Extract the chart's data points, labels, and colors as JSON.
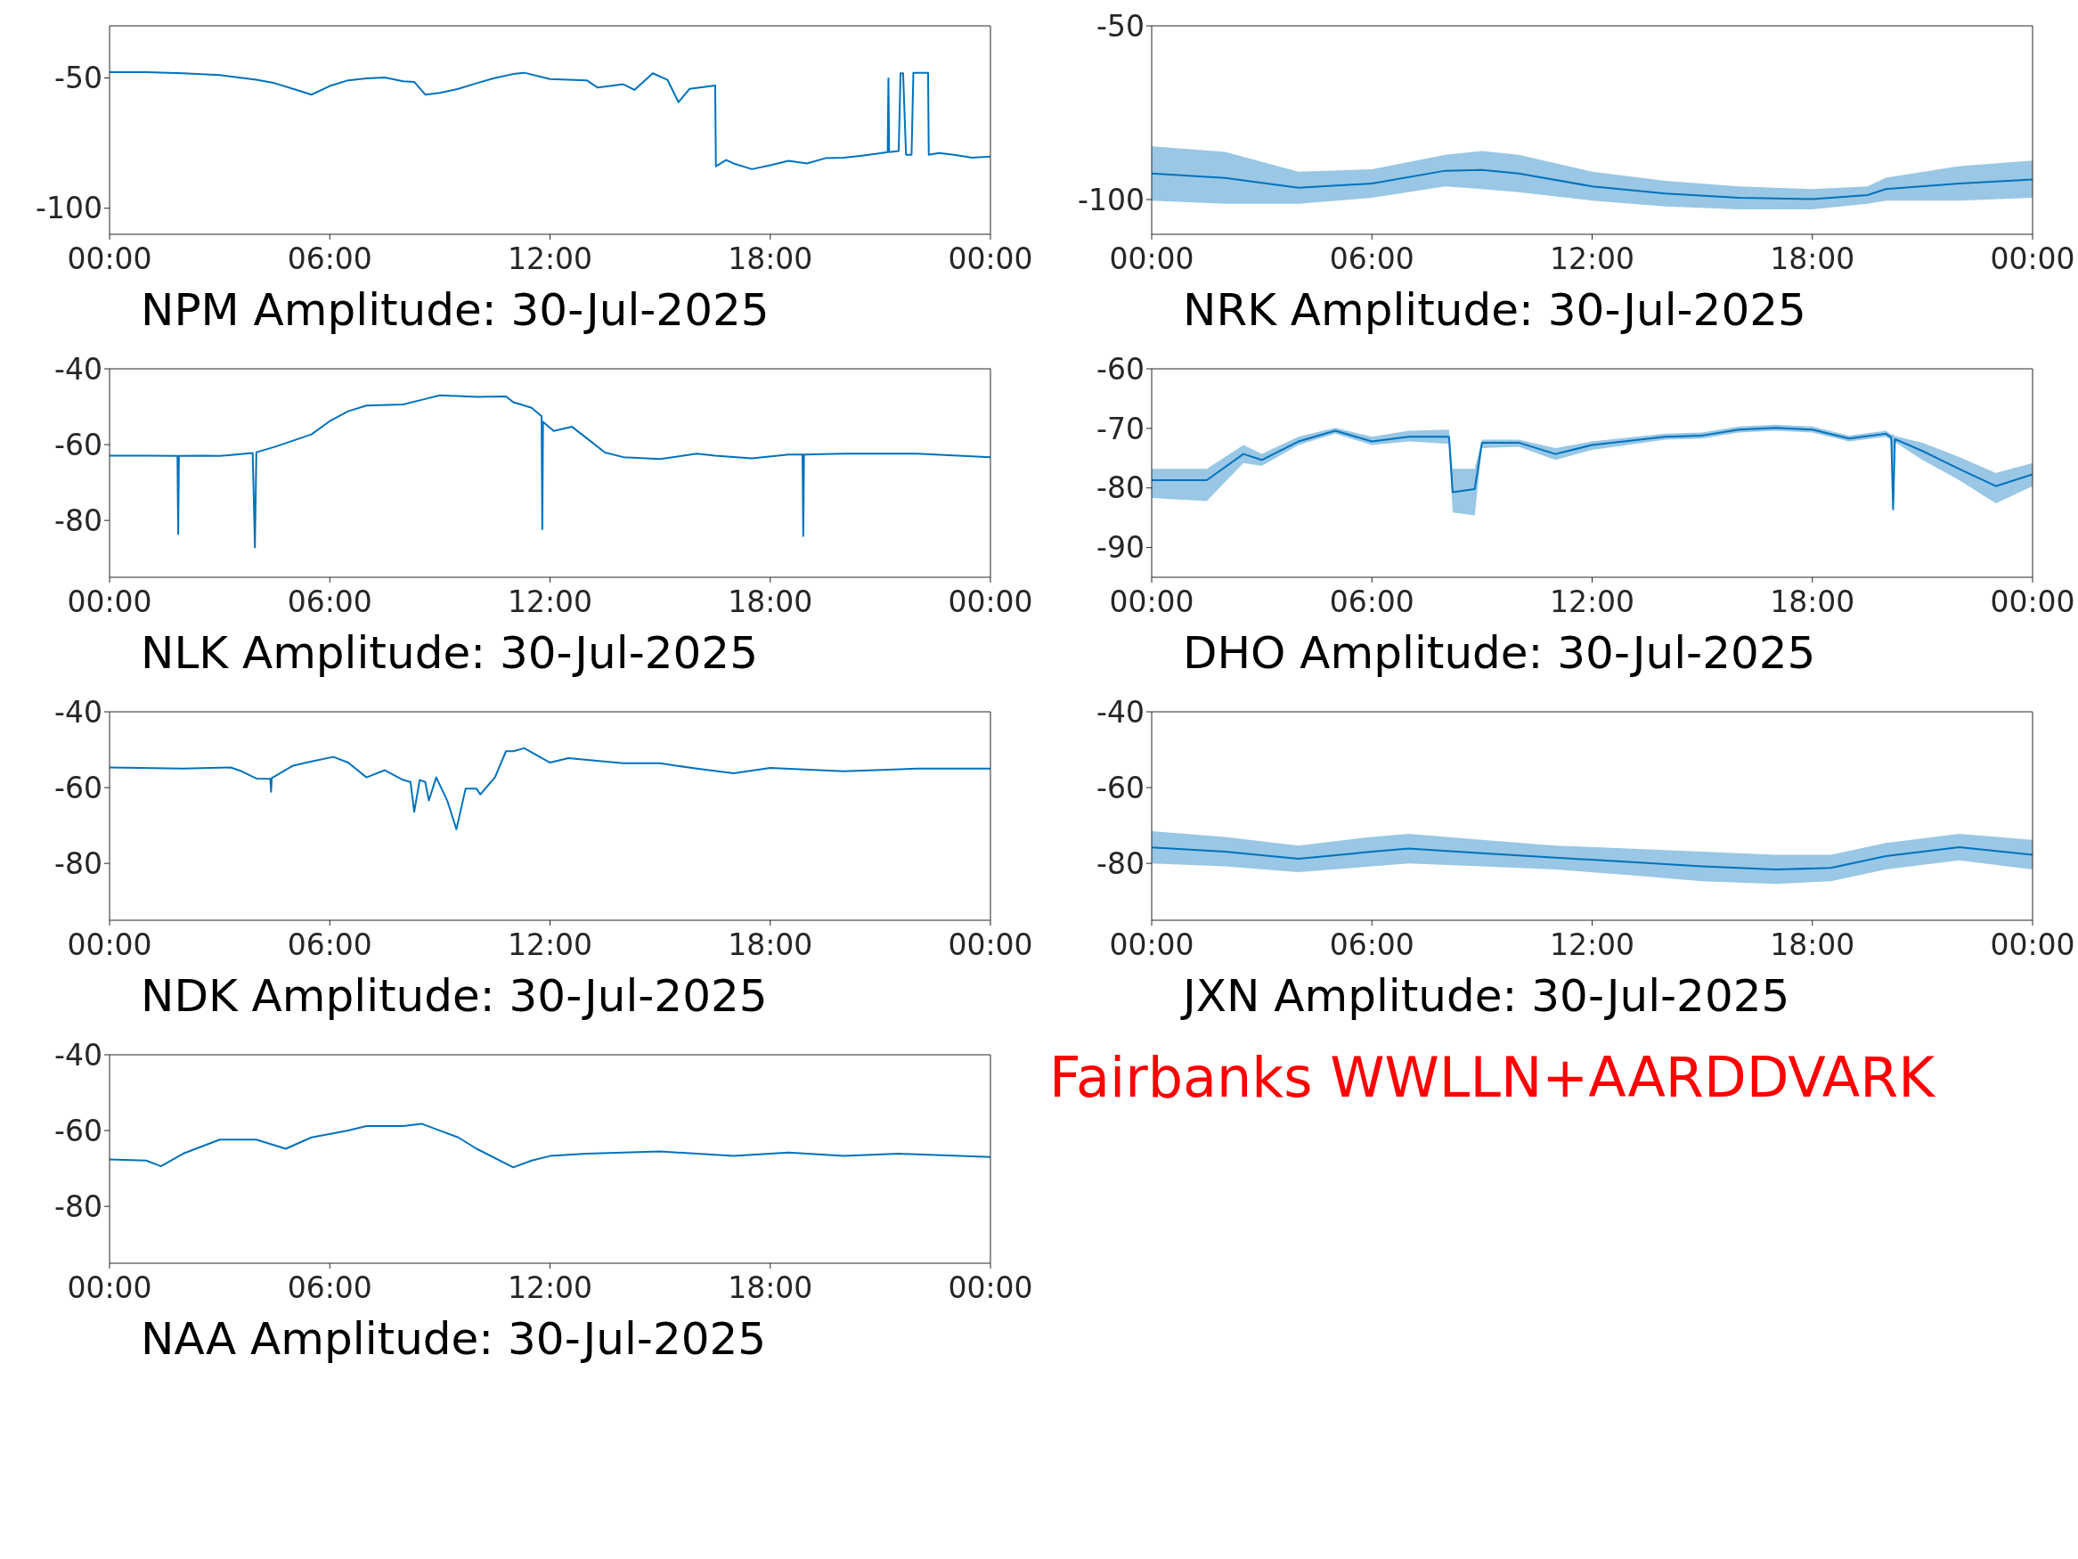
{
  "chart_data": [
    {
      "type": "line",
      "title": "NPM Amplitude: 30-Jul-2025",
      "xlim": [
        0,
        24
      ],
      "xticks": [
        {
          "value": 0,
          "label": "00:00"
        },
        {
          "value": 6,
          "label": "06:00"
        },
        {
          "value": 12,
          "label": "12:00"
        },
        {
          "value": 18,
          "label": "18:00"
        },
        {
          "value": 24,
          "label": "00:00"
        }
      ],
      "ylim": [
        -110,
        -30
      ],
      "yticks": [
        -100,
        -50
      ],
      "x": [
        0,
        1,
        2,
        3,
        4,
        4.5,
        5,
        5.5,
        6,
        6.5,
        7,
        7.5,
        8,
        8.3,
        8.6,
        9,
        9.5,
        10,
        10.5,
        11,
        11.3,
        12,
        13,
        13.3,
        14,
        14.3,
        14.8,
        15.2,
        15.5,
        15.8,
        16.5,
        16.52,
        16.8,
        17,
        17.5,
        18,
        18.5,
        19,
        19.5,
        20,
        20.5,
        21,
        21.2,
        21.22,
        21.24,
        21.5,
        21.55,
        21.62,
        21.7,
        21.85,
        21.9,
        22.3,
        22.32,
        22.6,
        23,
        23.5,
        24
      ],
      "series": [
        {
          "color": "#0072bd",
          "values": [
            -47.8,
            -47.8,
            -48.2,
            -48.9,
            -50.7,
            -52,
            -54.2,
            -56.4,
            -53.1,
            -50.9,
            -50.2,
            -49.8,
            -51.3,
            -51.5,
            -56.4,
            -55.7,
            -54.2,
            -52,
            -50,
            -48.5,
            -48,
            -50.4,
            -50.9,
            -53.7,
            -52.4,
            -54.6,
            -48.2,
            -50.7,
            -59.3,
            -54.2,
            -52.9,
            -83.9,
            -81.5,
            -82.8,
            -85,
            -83.5,
            -81.8,
            -82.8,
            -80.8,
            -80.6,
            -79.8,
            -78.9,
            -78.5,
            -50.2,
            -78.5,
            -78,
            -48.2,
            -48.2,
            -79.5,
            -79.5,
            -48,
            -48,
            -79.5,
            -78.8,
            -79.5,
            -80.6,
            -80.2
          ]
        }
      ]
    },
    {
      "type": "line",
      "title": "NRK Amplitude: 30-Jul-2025",
      "xlim": [
        0,
        24
      ],
      "xticks": [
        {
          "value": 0,
          "label": "00:00"
        },
        {
          "value": 6,
          "label": "06:00"
        },
        {
          "value": 12,
          "label": "12:00"
        },
        {
          "value": 18,
          "label": "18:00"
        },
        {
          "value": 24,
          "label": "00:00"
        }
      ],
      "ylim": [
        -110,
        -50
      ],
      "yticks": [
        -100,
        -50
      ],
      "x": [
        0,
        2,
        4,
        6,
        8,
        9,
        10,
        12,
        14,
        16,
        18,
        19.5,
        20,
        22,
        24
      ],
      "series": [
        {
          "color": "#0072bd",
          "values": [
            -92.5,
            -93.8,
            -96.6,
            -95.4,
            -91.7,
            -91.5,
            -92.5,
            -96.2,
            -98.3,
            -99.5,
            -99.9,
            -98.7,
            -97,
            -95.4,
            -94.2
          ],
          "lower": [
            -100.3,
            -101.2,
            -101.2,
            -99.5,
            -96.2,
            -97,
            -97.9,
            -100.3,
            -102,
            -102.8,
            -102.8,
            -101.2,
            -100.3,
            -100.3,
            -99.5
          ],
          "upper": [
            -84.7,
            -86.3,
            -92,
            -91.3,
            -87.1,
            -86,
            -87.1,
            -92,
            -94.6,
            -96.2,
            -97,
            -96.2,
            -93.7,
            -90.4,
            -88.8
          ]
        }
      ]
    },
    {
      "type": "line",
      "title": "NLK Amplitude: 30-Jul-2025",
      "xlim": [
        0,
        24
      ],
      "xticks": [
        {
          "value": 0,
          "label": "00:00"
        },
        {
          "value": 6,
          "label": "06:00"
        },
        {
          "value": 12,
          "label": "12:00"
        },
        {
          "value": 18,
          "label": "18:00"
        },
        {
          "value": 24,
          "label": "00:00"
        }
      ],
      "ylim": [
        -95,
        -40
      ],
      "yticks": [
        -80,
        -60,
        -40
      ],
      "x": [
        0,
        1,
        1.85,
        1.87,
        1.89,
        2.5,
        3,
        3.9,
        3.96,
        4.0,
        4.5,
        5.5,
        6,
        6.5,
        7,
        8,
        8.5,
        9,
        10,
        10.8,
        11,
        11.5,
        11.77,
        11.79,
        11.81,
        12.1,
        12.6,
        13,
        13.5,
        14,
        15,
        16,
        16.5,
        17.5,
        18.5,
        18.88,
        18.9,
        18.92,
        20,
        22,
        24
      ],
      "series": [
        {
          "color": "#0072bd",
          "values": [
            -62.9,
            -62.9,
            -63,
            -83.6,
            -63,
            -62.9,
            -63,
            -62.2,
            -87.1,
            -62,
            -60.6,
            -57.3,
            -53.8,
            -51.2,
            -49.7,
            -49.4,
            -48.2,
            -47,
            -47.4,
            -47.3,
            -48.8,
            -50.3,
            -52.5,
            -82.3,
            -54,
            -56.4,
            -55.3,
            -58.3,
            -62.1,
            -63.3,
            -63.8,
            -62.4,
            -62.9,
            -63.6,
            -62.6,
            -62.6,
            -84.1,
            -62.6,
            -62.4,
            -62.4,
            -63.3
          ]
        }
      ]
    },
    {
      "type": "line",
      "title": "DHO Amplitude: 30-Jul-2025",
      "xlim": [
        0,
        24
      ],
      "xticks": [
        {
          "value": 0,
          "label": "00:00"
        },
        {
          "value": 6,
          "label": "06:00"
        },
        {
          "value": 12,
          "label": "12:00"
        },
        {
          "value": 18,
          "label": "18:00"
        },
        {
          "value": 24,
          "label": "00:00"
        }
      ],
      "ylim": [
        -95,
        -60
      ],
      "yticks": [
        -90,
        -80,
        -70,
        -60
      ],
      "x": [
        0,
        1.5,
        2.5,
        3,
        4,
        5,
        6,
        7,
        8.1,
        8.2,
        8.8,
        9,
        10,
        11,
        12,
        14,
        15,
        16,
        17,
        18,
        19,
        20,
        20.15,
        20.2,
        20.25,
        21,
        22,
        23,
        24
      ],
      "series": [
        {
          "color": "#0072bd",
          "values": [
            -78.7,
            -78.7,
            -74.3,
            -75.3,
            -72.2,
            -70.4,
            -72.2,
            -71.4,
            -71.4,
            -80.7,
            -80.2,
            -72.4,
            -72.4,
            -74.3,
            -72.8,
            -71.4,
            -71.2,
            -70.2,
            -69.9,
            -70.2,
            -71.7,
            -70.9,
            -71.5,
            -83.6,
            -71.8,
            -73.8,
            -76.8,
            -79.7,
            -77.7
          ],
          "lower": [
            -81.7,
            -82.2,
            -75.8,
            -76.3,
            -72.8,
            -70.9,
            -72.8,
            -72.2,
            -72.6,
            -84.1,
            -84.6,
            -73.3,
            -73.1,
            -75.3,
            -73.6,
            -71.9,
            -71.7,
            -70.7,
            -70.4,
            -70.7,
            -72.2,
            -71.4,
            -72,
            -83.6,
            -72.3,
            -75.3,
            -78.7,
            -82.6,
            -79.7
          ],
          "upper": [
            -76.8,
            -76.8,
            -72.8,
            -74.3,
            -71.4,
            -69.9,
            -71.4,
            -70.4,
            -70.2,
            -76.8,
            -76.8,
            -71.9,
            -71.9,
            -73.3,
            -72.2,
            -70.9,
            -70.7,
            -69.7,
            -69.4,
            -69.7,
            -71.2,
            -70.4,
            -71,
            -71,
            -71.3,
            -72.4,
            -74.8,
            -77.5,
            -75.8
          ]
        }
      ]
    },
    {
      "type": "line",
      "title": "NDK Amplitude: 30-Jul-2025",
      "xlim": [
        0,
        24
      ],
      "xticks": [
        {
          "value": 0,
          "label": "00:00"
        },
        {
          "value": 6,
          "label": "06:00"
        },
        {
          "value": 12,
          "label": "12:00"
        },
        {
          "value": 18,
          "label": "18:00"
        },
        {
          "value": 24,
          "label": "00:00"
        }
      ],
      "ylim": [
        -95,
        -40
      ],
      "yticks": [
        -80,
        -60,
        -40
      ],
      "x": [
        0,
        2,
        3.3,
        3.6,
        4,
        4.38,
        4.4,
        4.42,
        5,
        5.5,
        6.1,
        6.5,
        7,
        7.5,
        8,
        8.2,
        8.3,
        8.45,
        8.6,
        8.7,
        8.9,
        9.2,
        9.45,
        9.7,
        10,
        10.1,
        10.5,
        10.8,
        11,
        11.3,
        12,
        12.5,
        14,
        15,
        16,
        17,
        18,
        20,
        22,
        24
      ],
      "series": [
        {
          "color": "#0072bd",
          "values": [
            -54.7,
            -55,
            -54.7,
            -55.7,
            -57.6,
            -57.7,
            -61.1,
            -57.5,
            -54.2,
            -53.1,
            -51.9,
            -53.4,
            -57.3,
            -55.4,
            -58,
            -58.5,
            -66.4,
            -58,
            -58.5,
            -63.4,
            -57.3,
            -63.4,
            -71,
            -60.3,
            -60.3,
            -61.8,
            -57.3,
            -50.4,
            -50.4,
            -49.6,
            -53.4,
            -52.2,
            -53.6,
            -53.6,
            -55,
            -56.2,
            -54.8,
            -55.7,
            -55,
            -55
          ]
        }
      ]
    },
    {
      "type": "line",
      "title": "JXN Amplitude: 30-Jul-2025",
      "xlim": [
        0,
        24
      ],
      "xticks": [
        {
          "value": 0,
          "label": "00:00"
        },
        {
          "value": 6,
          "label": "06:00"
        },
        {
          "value": 12,
          "label": "12:00"
        },
        {
          "value": 18,
          "label": "18:00"
        },
        {
          "value": 24,
          "label": "00:00"
        }
      ],
      "ylim": [
        -95,
        -40
      ],
      "yticks": [
        -80,
        -60,
        -40
      ],
      "x": [
        0,
        2,
        4,
        6,
        7,
        9,
        11,
        13,
        15,
        17,
        18.5,
        20,
        22,
        24
      ],
      "series": [
        {
          "color": "#0072bd",
          "values": [
            -75.8,
            -76.9,
            -78.8,
            -76.9,
            -76.1,
            -77.3,
            -78.5,
            -79.6,
            -80.8,
            -81.6,
            -81.2,
            -78.1,
            -75.7,
            -77.7
          ],
          "lower": [
            -80,
            -80.8,
            -82.3,
            -80.8,
            -80,
            -80.8,
            -81.6,
            -83.1,
            -84.7,
            -85.4,
            -84.7,
            -81.6,
            -79.2,
            -81.6
          ],
          "upper": [
            -71.5,
            -73,
            -75.3,
            -73,
            -72.2,
            -73.8,
            -75.3,
            -76.1,
            -76.9,
            -77.7,
            -77.7,
            -74.6,
            -72.2,
            -73.8
          ]
        }
      ]
    },
    {
      "type": "line",
      "title": "NAA Amplitude: 30-Jul-2025",
      "xlim": [
        0,
        24
      ],
      "xticks": [
        {
          "value": 0,
          "label": "00:00"
        },
        {
          "value": 6,
          "label": "06:00"
        },
        {
          "value": 12,
          "label": "12:00"
        },
        {
          "value": 18,
          "label": "18:00"
        },
        {
          "value": 24,
          "label": "00:00"
        }
      ],
      "ylim": [
        -95,
        -40
      ],
      "yticks": [
        -80,
        -60,
        -40
      ],
      "x": [
        0,
        1,
        1.4,
        2,
        3,
        4,
        4.8,
        5.5,
        6.5,
        7,
        8,
        8.5,
        9,
        9.5,
        10,
        11,
        11.5,
        12,
        13,
        15,
        17,
        18.5,
        20,
        21.5,
        24
      ],
      "series": [
        {
          "color": "#0072bd",
          "values": [
            -67.6,
            -67.9,
            -69.4,
            -66.1,
            -62.4,
            -62.4,
            -64.8,
            -61.8,
            -60,
            -58.8,
            -58.8,
            -58.2,
            -60,
            -61.8,
            -64.8,
            -69.7,
            -67.9,
            -66.7,
            -66.1,
            -65.5,
            -66.7,
            -65.8,
            -66.7,
            -66.1,
            -67
          ]
        }
      ]
    },
    {
      "type": "other",
      "annotations": [
        "Fairbanks WWLLN+AARDDVARK"
      ]
    }
  ]
}
